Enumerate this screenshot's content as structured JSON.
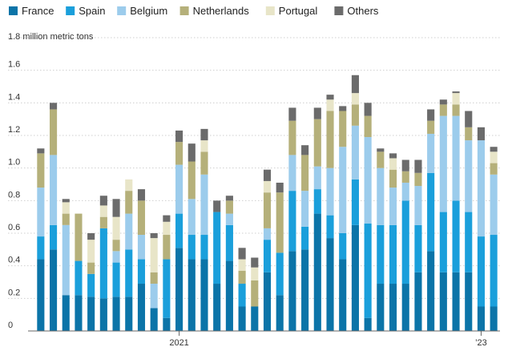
{
  "chart_data": {
    "type": "bar",
    "stacked": true,
    "ylabel": "million metric tons",
    "ylim": [
      0,
      1.8
    ],
    "yticks": [
      0,
      0.2,
      0.4,
      0.6,
      0.8,
      1.0,
      1.2,
      1.4,
      1.6
    ],
    "ytick_labels": [
      "0",
      "0.2",
      "0.4",
      "0.6",
      "0.8",
      "1.0",
      "1.2",
      "1.4",
      "1.6"
    ],
    "top_tick_label": "1.8",
    "x_tick_labels": [
      {
        "label": "2021",
        "index": 11
      },
      {
        "label": "’23",
        "index": 35
      }
    ],
    "legend": {
      "placement": "top-left"
    },
    "grid": true,
    "series": [
      {
        "name": "France",
        "color": "#0b74a8",
        "values": [
          0.44,
          0.5,
          0.22,
          0.22,
          0.21,
          0.2,
          0.21,
          0.21,
          0.29,
          0.14,
          0.08,
          0.51,
          0.44,
          0.44,
          0.29,
          0.43,
          0.15,
          0.15,
          0.36,
          0.22,
          0.49,
          0.5,
          0.72,
          0.57,
          0.44,
          0.65,
          0.08,
          0.29,
          0.29,
          0.29,
          0.36,
          0.49,
          0.36,
          0.36,
          0.36,
          0.15,
          0.15
        ]
      },
      {
        "name": "Spain",
        "color": "#1a9fdb",
        "values": [
          0.14,
          0.15,
          0.0,
          0.21,
          0.14,
          0.43,
          0.21,
          0.29,
          0.15,
          0.0,
          0.36,
          0.21,
          0.15,
          0.15,
          0.44,
          0.22,
          0.14,
          0.0,
          0.2,
          0.26,
          0.37,
          0.14,
          0.15,
          0.14,
          0.16,
          0.28,
          0.58,
          0.36,
          0.36,
          0.51,
          0.29,
          0.48,
          0.37,
          0.44,
          0.37,
          0.43,
          0.44
        ]
      },
      {
        "name": "Belgium",
        "color": "#9cccec",
        "values": [
          0.3,
          0.43,
          0.43,
          0.0,
          0.0,
          0.0,
          0.07,
          0.22,
          0.15,
          0.15,
          0.0,
          0.3,
          0.22,
          0.37,
          0.0,
          0.07,
          0.0,
          0.0,
          0.07,
          0.0,
          0.22,
          0.22,
          0.14,
          0.29,
          0.53,
          0.33,
          0.53,
          0.35,
          0.23,
          0.11,
          0.24,
          0.24,
          0.59,
          0.52,
          0.44,
          0.59,
          0.37
        ]
      },
      {
        "name": "Netherlands",
        "color": "#b5b07a",
        "values": [
          0.21,
          0.28,
          0.07,
          0.29,
          0.07,
          0.07,
          0.07,
          0.14,
          0.21,
          0.07,
          0.15,
          0.14,
          0.23,
          0.14,
          0.0,
          0.08,
          0.08,
          0.16,
          0.22,
          0.37,
          0.21,
          0.22,
          0.29,
          0.35,
          0.22,
          0.13,
          0.13,
          0.1,
          0.11,
          0.07,
          0.08,
          0.08,
          0.07,
          0.07,
          0.08,
          0.0,
          0.07
        ]
      },
      {
        "name": "Portugal",
        "color": "#e8e5c8",
        "values": [
          0.0,
          0.0,
          0.07,
          0.0,
          0.14,
          0.07,
          0.14,
          0.07,
          0.0,
          0.21,
          0.08,
          0.0,
          0.0,
          0.07,
          0.0,
          0.0,
          0.07,
          0.08,
          0.07,
          0.0,
          0.0,
          0.0,
          0.0,
          0.07,
          0.0,
          0.07,
          0.0,
          0.0,
          0.07,
          0.0,
          0.0,
          0.0,
          0.0,
          0.07,
          0.0,
          0.0,
          0.07
        ]
      },
      {
        "name": "Others",
        "color": "#6b6b6b",
        "values": [
          0.03,
          0.04,
          0.02,
          0.0,
          0.04,
          0.06,
          0.11,
          0.0,
          0.07,
          0.03,
          0.04,
          0.07,
          0.11,
          0.07,
          0.07,
          0.03,
          0.07,
          0.06,
          0.07,
          0.06,
          0.08,
          0.06,
          0.07,
          0.03,
          0.03,
          0.11,
          0.08,
          0.02,
          0.03,
          0.07,
          0.08,
          0.07,
          0.03,
          0.01,
          0.1,
          0.08,
          0.03
        ]
      }
    ]
  }
}
